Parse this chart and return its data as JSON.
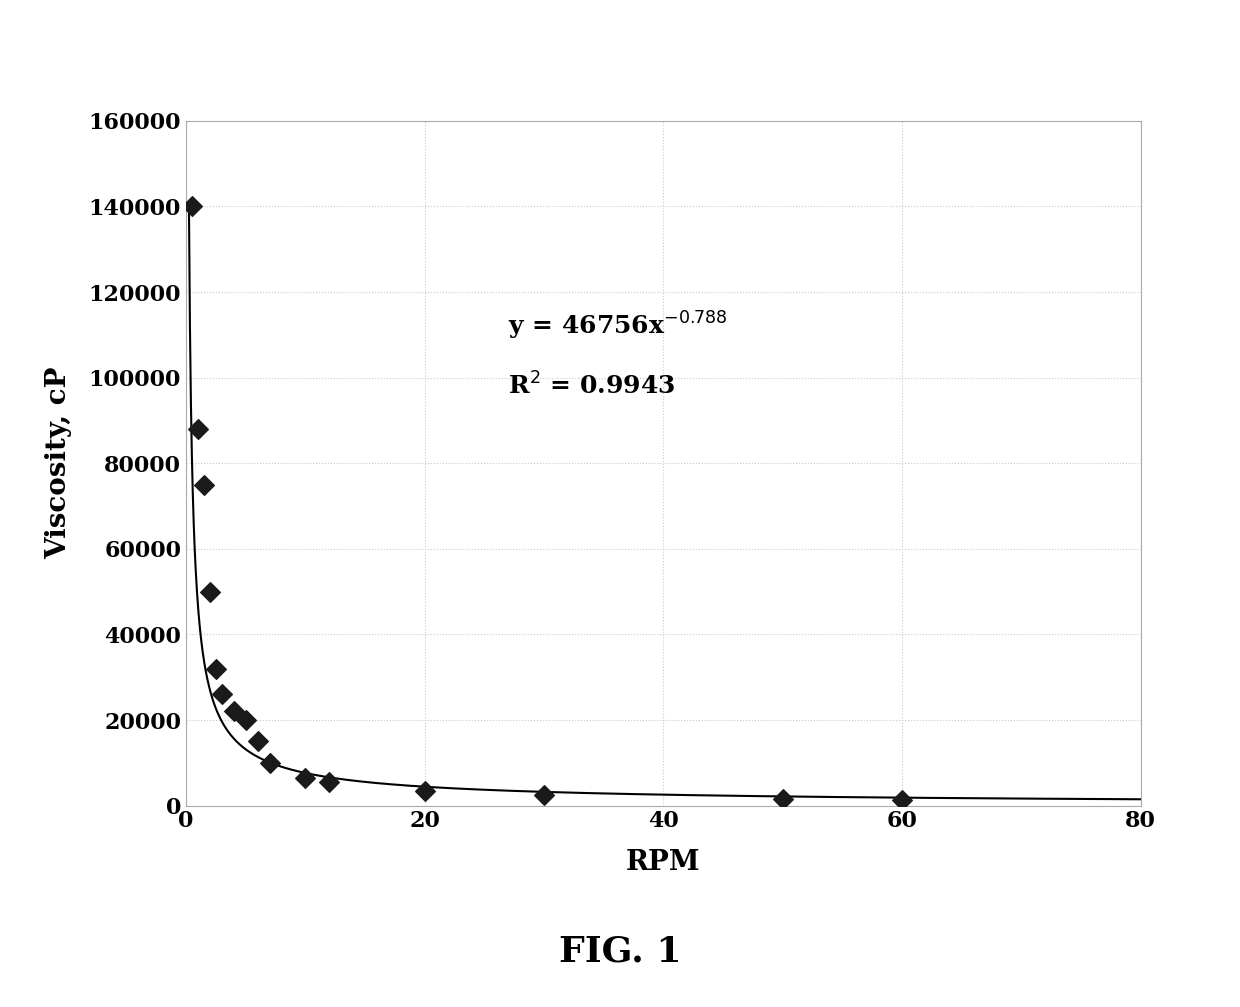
{
  "x_data": [
    0.5,
    1.0,
    1.5,
    2.0,
    2.5,
    3.0,
    4.0,
    5.0,
    6.0,
    7.0,
    10.0,
    12.0,
    20.0,
    30.0,
    50.0,
    60.0
  ],
  "y_data": [
    140000,
    88000,
    75000,
    50000,
    32000,
    26000,
    22000,
    20000,
    15000,
    10000,
    6500,
    5500,
    3500,
    2500,
    1500,
    1200
  ],
  "xlabel": "RPM",
  "ylabel": "Viscosity, cP",
  "title": "FIG. 1",
  "xlim": [
    0,
    80
  ],
  "ylim": [
    0,
    160000
  ],
  "yticks": [
    0,
    20000,
    40000,
    60000,
    80000,
    100000,
    120000,
    140000,
    160000
  ],
  "xticks": [
    0,
    20,
    40,
    60,
    80
  ],
  "grid_color": "#c8c8c8",
  "line_color": "#000000",
  "marker_color": "#1a1a1a",
  "bg_color": "#ffffff",
  "annotation_fontsize": 18,
  "axis_label_fontsize": 20,
  "tick_fontsize": 16,
  "title_fontsize": 26,
  "power_coeff": 46756,
  "power_exp": -0.788,
  "ann_x": 27,
  "ann_y1": 110000,
  "ann_y2": 96000
}
